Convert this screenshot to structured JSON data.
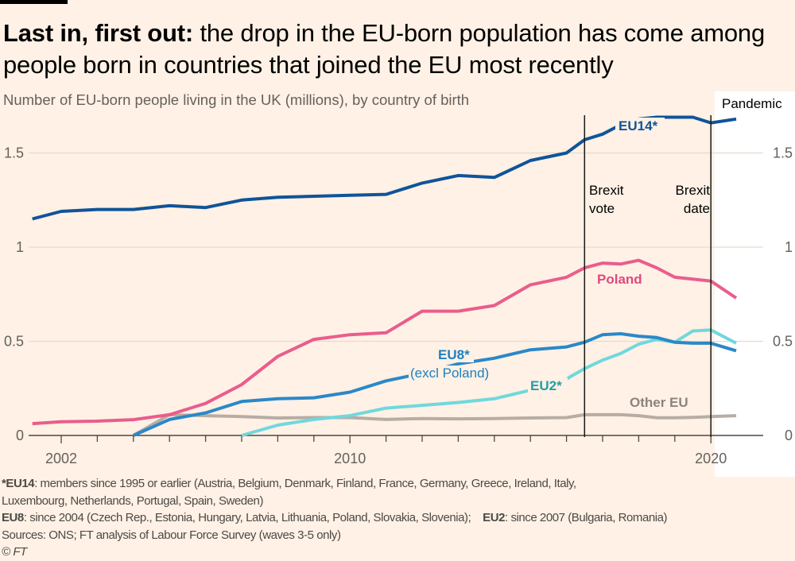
{
  "header": {
    "title_bold": "Last in, first out:",
    "title_rest": " the drop in the EU-born population has come among people born in countries that joined the EU most recently",
    "subtitle": "Number of EU-born people living in the UK (millions), by country of birth"
  },
  "chart_data": {
    "type": "line",
    "title": "Last in, first out: the drop in the EU-born population has come among people born in countries that joined the EU most recently",
    "subtitle": "Number of EU-born people living in the UK (millions), by country of birth",
    "xlabel": "",
    "ylabel": "",
    "xlim": [
      2001.2,
      2021.5
    ],
    "ylim": [
      0,
      1.75
    ],
    "x_ticks": [
      2002,
      2003,
      2004,
      2005,
      2006,
      2007,
      2008,
      2009,
      2010,
      2011,
      2012,
      2013,
      2014,
      2015,
      2016,
      2017,
      2018,
      2019,
      2020
    ],
    "x_tick_labels": [
      "2002",
      "2010",
      "2020"
    ],
    "y_ticks": [
      0,
      0.5,
      1,
      1.5
    ],
    "y_tick_labels": [
      "0",
      "0.5",
      "1",
      "1.5"
    ],
    "grid": "horizontal",
    "annotations": [
      {
        "text_line1": "Brexit",
        "text_line2": "vote",
        "x": 2016.5
      },
      {
        "text_line1": "Brexit",
        "text_line2": "date",
        "x": 2020.0
      }
    ],
    "shaded_region": {
      "label": "Pandemic",
      "x_from": 2020.1,
      "color": "#ffffff"
    },
    "series": [
      {
        "name": "EU14*",
        "color": "#0f5499",
        "label_color": "#0f5499",
        "x": [
          2001.2,
          2002,
          2003,
          2004,
          2005,
          2006,
          2007,
          2008,
          2009,
          2010,
          2011,
          2012,
          2013,
          2014,
          2015,
          2016,
          2016.5,
          2017,
          2017.5,
          2018,
          2018.5,
          2019,
          2019.5,
          2020,
          2020.7
        ],
        "values": [
          1.15,
          1.19,
          1.2,
          1.2,
          1.22,
          1.21,
          1.25,
          1.265,
          1.27,
          1.275,
          1.28,
          1.34,
          1.38,
          1.37,
          1.46,
          1.5,
          1.57,
          1.6,
          1.65,
          1.68,
          1.69,
          1.69,
          1.69,
          1.66,
          1.68
        ]
      },
      {
        "name": "Poland",
        "color": "#e95d8c",
        "label_color": "#e0487e",
        "x": [
          2001.2,
          2002,
          2003,
          2004,
          2005,
          2006,
          2007,
          2008,
          2009,
          2010,
          2011,
          2012,
          2013,
          2014,
          2015,
          2016,
          2016.5,
          2017,
          2017.5,
          2018,
          2018.5,
          2019,
          2019.5,
          2020,
          2020.7
        ],
        "values": [
          0.063,
          0.073,
          0.076,
          0.084,
          0.11,
          0.17,
          0.27,
          0.42,
          0.51,
          0.535,
          0.545,
          0.66,
          0.66,
          0.69,
          0.8,
          0.84,
          0.89,
          0.915,
          0.91,
          0.93,
          0.89,
          0.84,
          0.83,
          0.82,
          0.73
        ]
      },
      {
        "name": "EU8*",
        "name_note": "(excl Poland)",
        "color": "#2a88c8",
        "label_color": "#1e80c0",
        "x": [
          2004,
          2005,
          2006,
          2007,
          2008,
          2009,
          2010,
          2011,
          2012,
          2013,
          2014,
          2015,
          2016,
          2016.5,
          2017,
          2017.5,
          2018,
          2018.5,
          2019,
          2019.5,
          2020,
          2020.7
        ],
        "values": [
          0,
          0.085,
          0.12,
          0.18,
          0.195,
          0.2,
          0.23,
          0.29,
          0.33,
          0.38,
          0.41,
          0.455,
          0.47,
          0.495,
          0.535,
          0.54,
          0.527,
          0.52,
          0.495,
          0.49,
          0.49,
          0.45
        ]
      },
      {
        "name": "EU2*",
        "color": "#70d8dc",
        "label_color": "#1ea0a6",
        "x": [
          2007,
          2008,
          2009,
          2010,
          2011,
          2012,
          2013,
          2014,
          2015,
          2016,
          2016.5,
          2017,
          2017.5,
          2018,
          2018.5,
          2019,
          2019.5,
          2020,
          2020.7
        ],
        "values": [
          0,
          0.055,
          0.085,
          0.105,
          0.145,
          0.16,
          0.175,
          0.195,
          0.24,
          0.3,
          0.355,
          0.4,
          0.435,
          0.485,
          0.51,
          0.495,
          0.555,
          0.56,
          0.49
        ]
      },
      {
        "name": "Other EU",
        "color": "#b8ada5",
        "label_color": "#8c837d",
        "x": [
          2004,
          2005,
          2006,
          2007,
          2008,
          2009,
          2010,
          2011,
          2012,
          2013,
          2014,
          2015,
          2016,
          2016.5,
          2017,
          2017.5,
          2018,
          2018.5,
          2019,
          2019.5,
          2020,
          2020.7
        ],
        "values": [
          0,
          0.11,
          0.105,
          0.1,
          0.093,
          0.095,
          0.095,
          0.085,
          0.09,
          0.088,
          0.09,
          0.093,
          0.095,
          0.11,
          0.11,
          0.11,
          0.105,
          0.094,
          0.094,
          0.096,
          0.1,
          0.105
        ]
      }
    ]
  },
  "footnotes": {
    "eu14_key": "*EU14",
    "eu14_text": ": members since 1995 or earlier (Austria, Belgium, Denmark, Finland, France, Germany, Greece, Ireland, Italy,",
    "eu14_text2": "Luxembourg, Netherlands, Portugal, Spain, Sweden)",
    "eu8_key": "EU8",
    "eu8_text": ": since 2004 (Czech Rep., Estonia, Hungary, Latvia, Lithuania, Poland, Slovakia, Slovenia);",
    "eu2_key": "EU2",
    "eu2_text": ": since 2007 (Bulgaria, Romania)",
    "sources": "Sources: ONS; FT analysis of Labour Force Survey (waves 3-5 only)",
    "copyright": "© FT"
  }
}
